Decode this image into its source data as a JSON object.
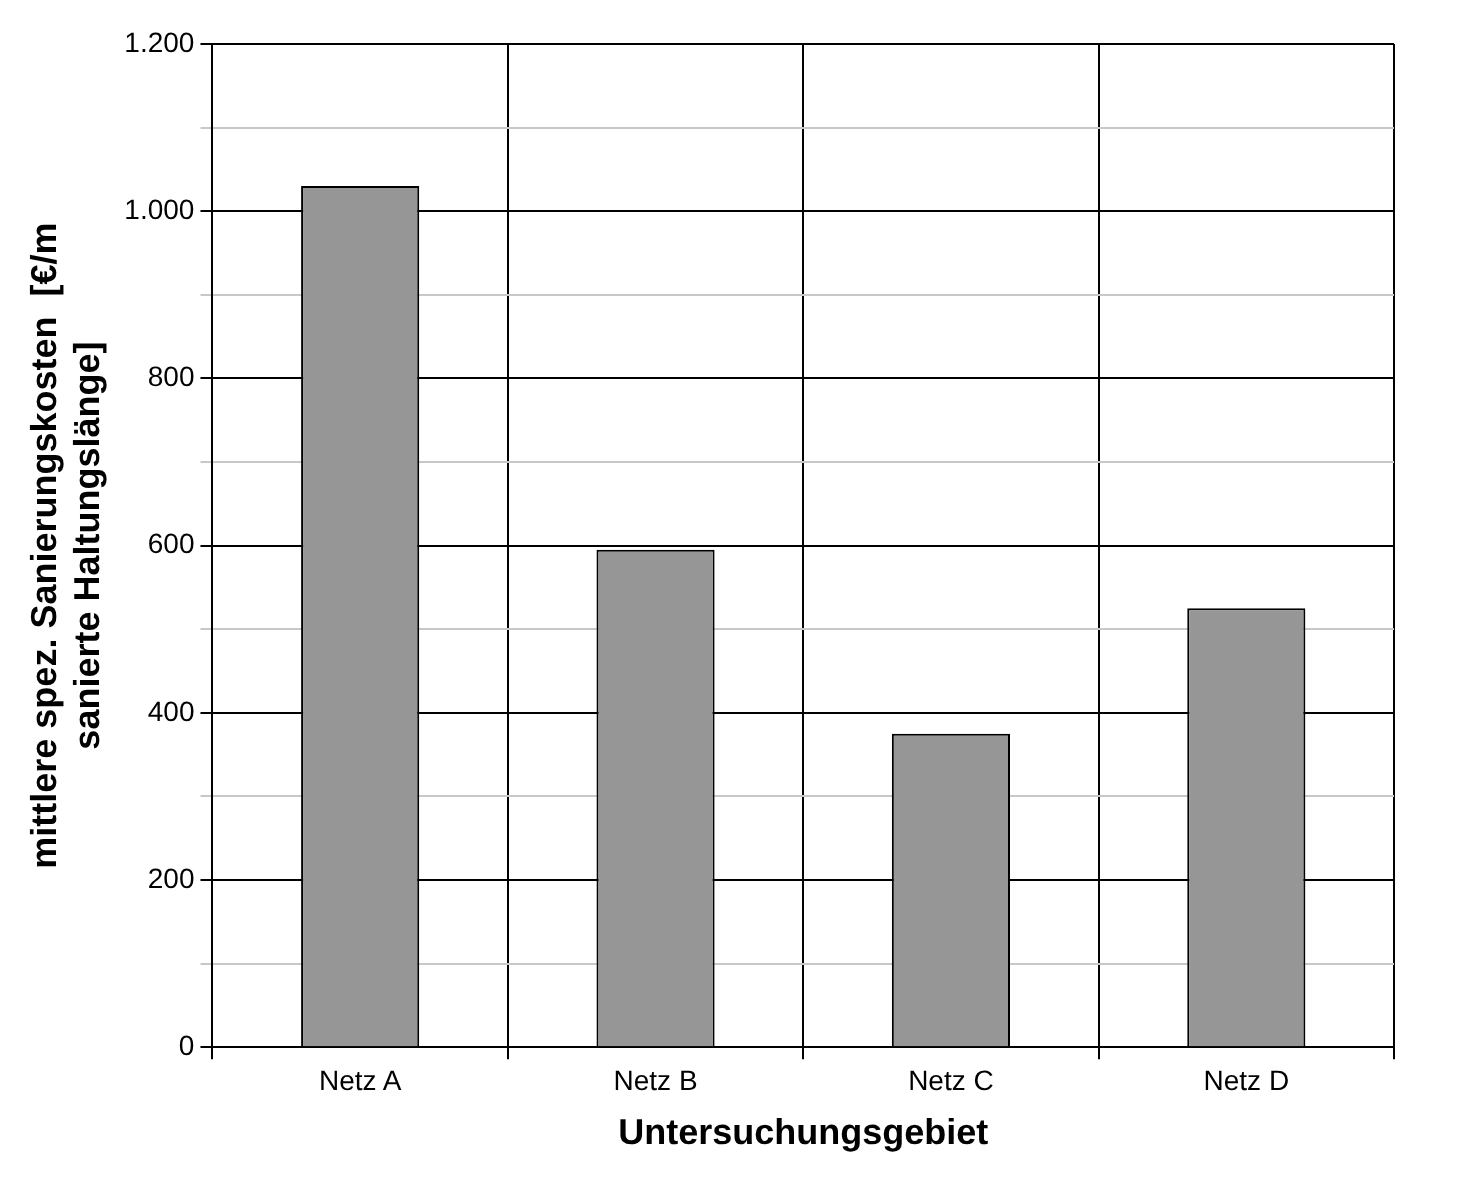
{
  "chart_data": {
    "type": "bar",
    "xlabel": "Untersuchungsgebiet",
    "ylabel": "mittlere spez. Sanierungskosten  [€/m\nsanierte Haltungslänge]",
    "categories": [
      "Netz A",
      "Netz B",
      "Netz C",
      "Netz D"
    ],
    "values": [
      1030,
      595,
      375,
      525
    ],
    "color": "#969696",
    "ylim": [
      0,
      1200
    ],
    "yticks": [
      0,
      {
        "value": 100,
        "label": null
      },
      {
        "value": 200,
        "label": "200"
      },
      {
        "value": 300,
        "label": null
      },
      {
        "value": 400,
        "label": "400"
      },
      {
        "value": 500,
        "label": null
      },
      {
        "value": 600,
        "label": "600"
      },
      {
        "value": 700,
        "label": null
      },
      {
        "value": 800,
        "label": "800"
      },
      {
        "value": 900,
        "label": null
      },
      {
        "value": 1000,
        "label": "1.000"
      },
      {
        "value": 1100,
        "label": null
      },
      {
        "value": 1200,
        "label": "1.200"
      }
    ],
    "grid": true,
    "legend": false
  }
}
